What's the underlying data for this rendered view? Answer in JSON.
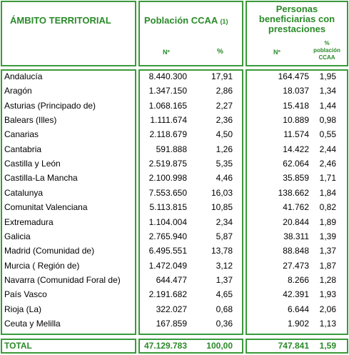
{
  "header": {
    "territory": "ÁMBITO TERRITORIAL",
    "population": {
      "title": "Población CCAA",
      "note": "(1)",
      "n": "Nº",
      "pct": "%"
    },
    "beneficiaries": {
      "title": "Personas beneficiarias con prestaciones",
      "n": "Nº",
      "pct": "% población CCAA"
    }
  },
  "table": {
    "rows": [
      [
        "Andalucía",
        "8.440.300",
        "17,91",
        "164.475",
        "1,95"
      ],
      [
        "Aragón",
        "1.347.150",
        "2,86",
        "18.037",
        "1,34"
      ],
      [
        "Asturias (Principado de)",
        "1.068.165",
        "2,27",
        "15.418",
        "1,44"
      ],
      [
        "Balears (Illes)",
        "1.111.674",
        "2,36",
        "10.889",
        "0,98"
      ],
      [
        "Canarias",
        "2.118.679",
        "4,50",
        "11.574",
        "0,55"
      ],
      [
        "Cantabria",
        "591.888",
        "1,26",
        "14.422",
        "2,44"
      ],
      [
        "Castilla y León",
        "2.519.875",
        "5,35",
        "62.064",
        "2,46"
      ],
      [
        "Castilla-La Mancha",
        "2.100.998",
        "4,46",
        "35.859",
        "1,71"
      ],
      [
        "Catalunya",
        "7.553.650",
        "16,03",
        "138.662",
        "1,84"
      ],
      [
        "Comunitat Valenciana",
        "5.113.815",
        "10,85",
        "41.762",
        "0,82"
      ],
      [
        "Extremadura",
        "1.104.004",
        "2,34",
        "20.844",
        "1,89"
      ],
      [
        "Galicia",
        "2.765.940",
        "5,87",
        "38.311",
        "1,39"
      ],
      [
        "Madrid (Comunidad de)",
        "6.495.551",
        "13,78",
        "88.848",
        "1,37"
      ],
      [
        "Murcia ( Región de)",
        "1.472.049",
        "3,12",
        "27.473",
        "1,87"
      ],
      [
        "Navarra (Comunidad Foral de)",
        "644.477",
        "1,37",
        "8.266",
        "1,28"
      ],
      [
        "País Vasco",
        "2.191.682",
        "4,65",
        "42.391",
        "1,93"
      ],
      [
        "Rioja (La)",
        "322.027",
        "0,68",
        "6.644",
        "2,06"
      ],
      [
        "Ceuta y Melilla",
        "167.859",
        "0,36",
        "1.902",
        "1,13"
      ]
    ],
    "total": [
      "TOTAL",
      "47.129.783",
      "100,00",
      "747.841",
      "1,59"
    ]
  }
}
